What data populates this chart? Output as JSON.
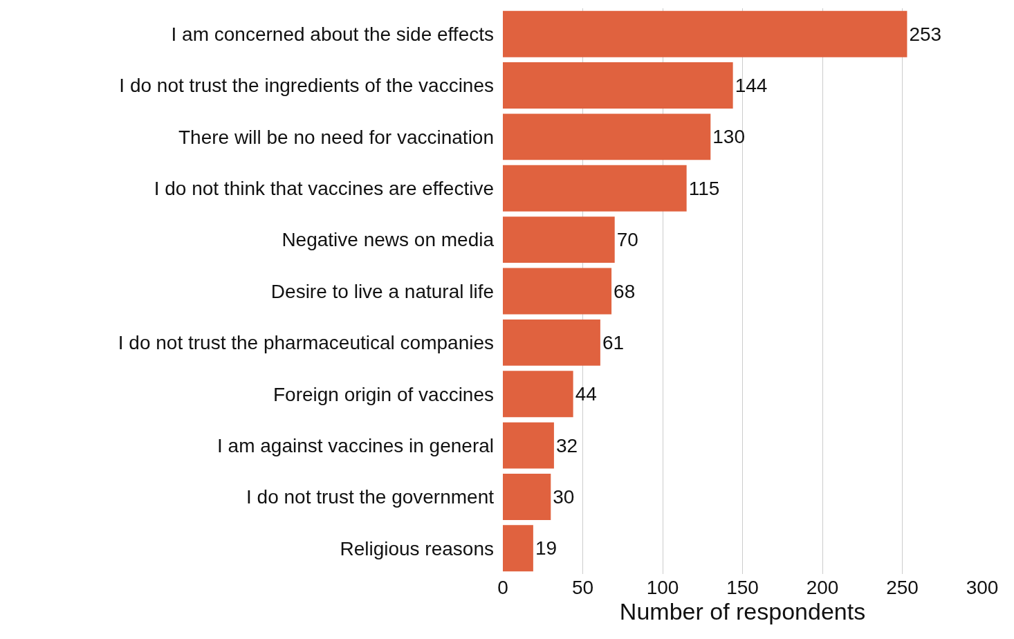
{
  "chart_data": {
    "type": "bar",
    "orientation": "horizontal",
    "xlabel": "Number of respondents",
    "categories": [
      "I am concerned about the side effects",
      "I do not trust the ingredients of the vaccines",
      "There will be no need for vaccination",
      "I do not think that vaccines are effective",
      "Negative news on media",
      "Desire to live a natural life",
      "I do not trust the pharmaceutical companies",
      "Foreign origin of vaccines",
      "I am against vaccines in general",
      "I do not trust the government",
      "Religious reasons"
    ],
    "values": [
      253,
      144,
      130,
      115,
      70,
      68,
      61,
      44,
      32,
      30,
      19
    ],
    "color": "#e0623f",
    "xlim": [
      0,
      300
    ],
    "xticks": [
      0,
      50,
      100,
      150,
      200,
      250,
      300
    ],
    "grid": "x",
    "data_labels": true,
    "legend": false
  }
}
